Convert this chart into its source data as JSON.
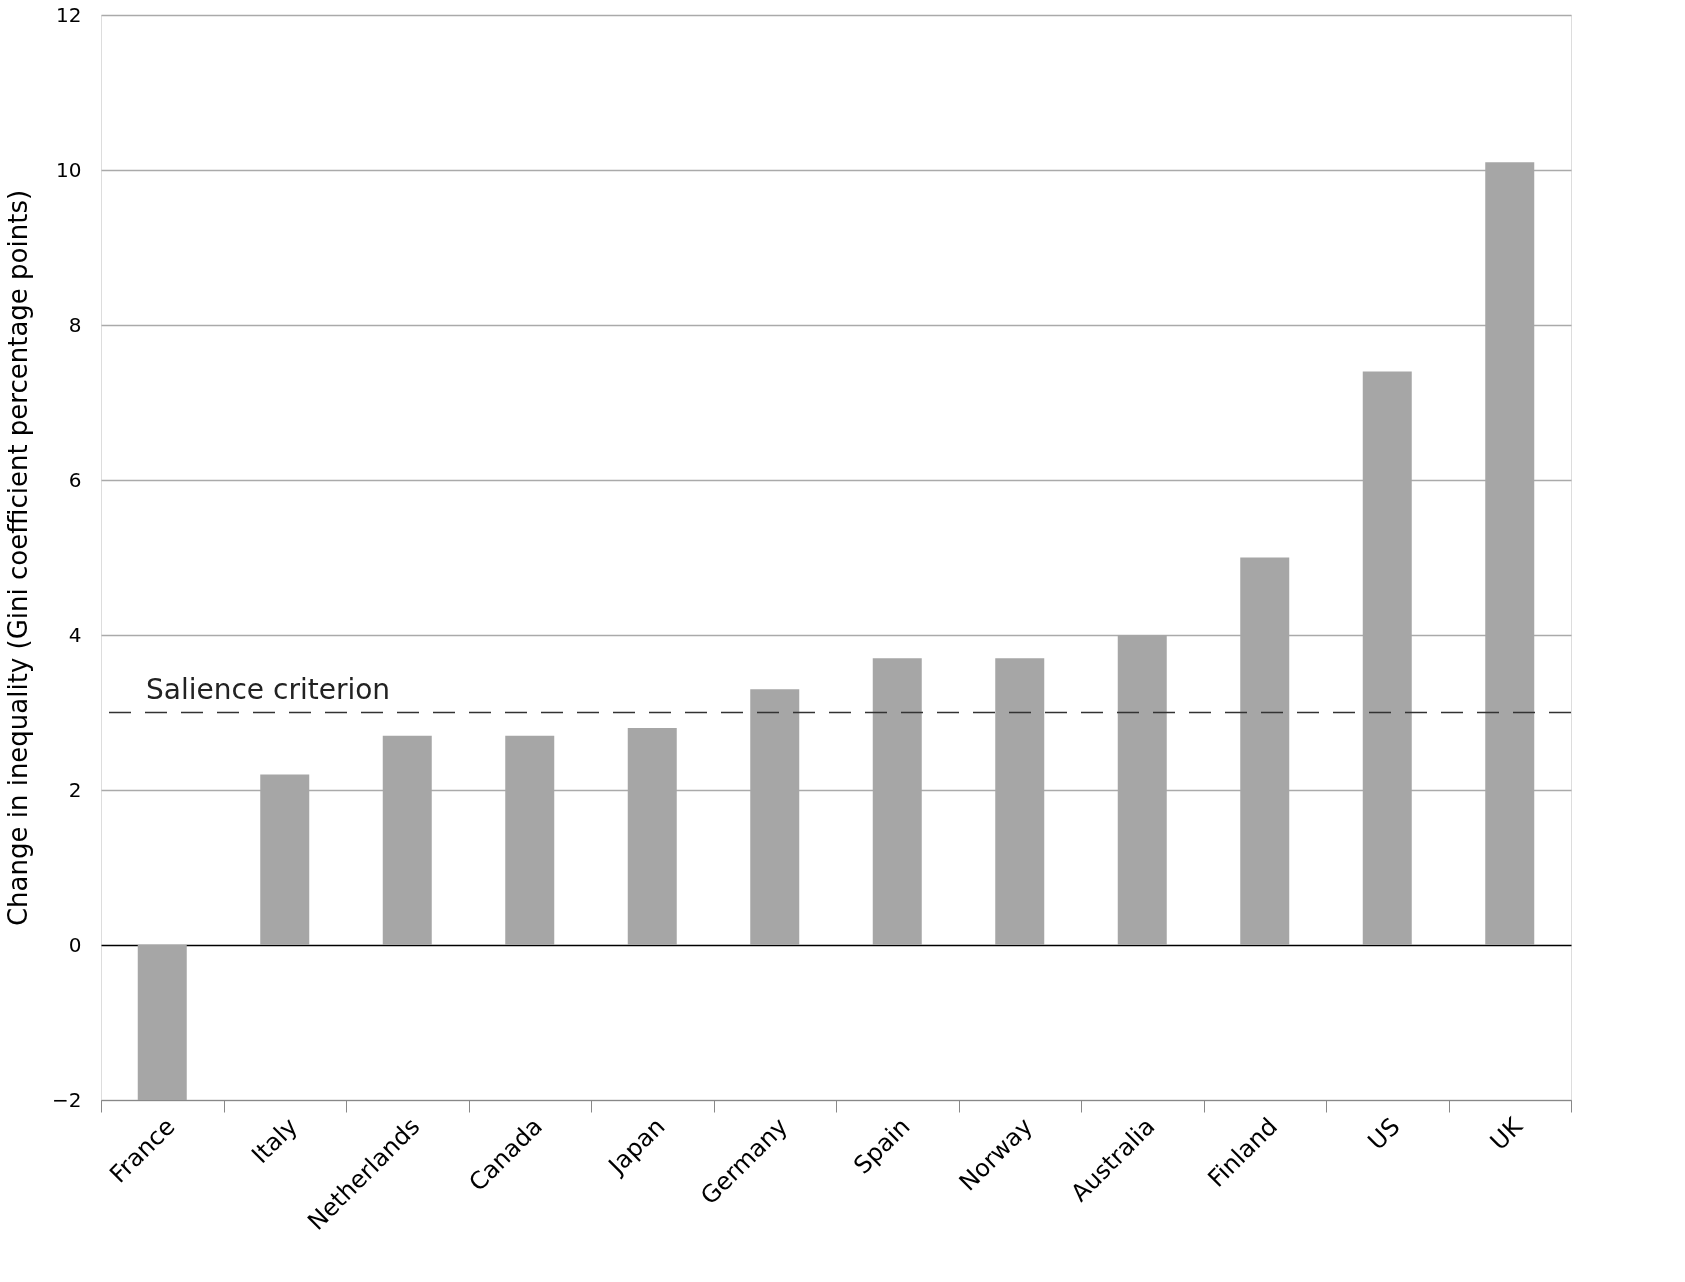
{
  "chart_data": {
    "type": "bar",
    "ylabel": "Change in inequality (Gini coefficient percentage points)",
    "categories": [
      "France",
      "Italy",
      "Netherlands",
      "Canada",
      "Japan",
      "Germany",
      "Spain",
      "Norway",
      "Australia",
      "Finland",
      "US",
      "UK"
    ],
    "values": [
      -2.0,
      2.2,
      2.7,
      2.7,
      2.8,
      3.3,
      3.7,
      3.7,
      4.0,
      5.0,
      7.4,
      10.1
    ],
    "color": "#a6a6a6",
    "ylim": [
      -2,
      12
    ],
    "yticks": [
      -2,
      0,
      2,
      4,
      6,
      8,
      10,
      12
    ],
    "grid": "y",
    "ref_lines": [
      {
        "axis": "y",
        "value": 3.0,
        "label": "Salience criterion",
        "color": "#333333",
        "line_style": "dashed"
      }
    ]
  }
}
